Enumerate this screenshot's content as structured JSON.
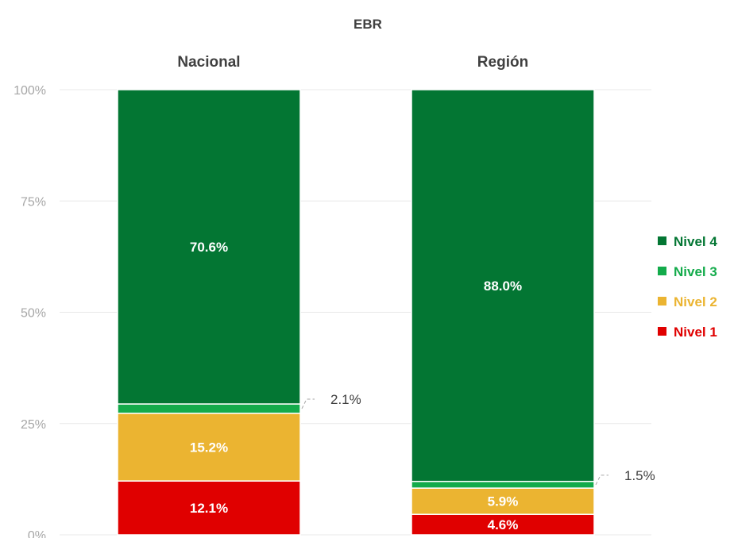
{
  "chart_data": {
    "type": "bar",
    "stacked": true,
    "title": "EBR",
    "categories": [
      "Nacional",
      "Región"
    ],
    "yticks": [
      "0%",
      "25%",
      "50%",
      "75%",
      "100%"
    ],
    "ylim": [
      0,
      100
    ],
    "grid": true,
    "legend_position": "right",
    "series": [
      {
        "name": "Nivel 1",
        "color": "#e00000",
        "values": [
          12.1,
          4.6
        ],
        "labels": [
          "12.1%",
          "4.6%"
        ],
        "label_outside": false
      },
      {
        "name": "Nivel 2",
        "color": "#ebb431",
        "values": [
          15.2,
          5.9
        ],
        "labels": [
          "15.2%",
          "5.9%"
        ],
        "label_outside": false
      },
      {
        "name": "Nivel 3",
        "color": "#13ab4b",
        "values": [
          2.1,
          1.5
        ],
        "labels": [
          "2.1%",
          "1.5%"
        ],
        "label_outside": true
      },
      {
        "name": "Nivel 4",
        "color": "#037633",
        "values": [
          70.6,
          88.0
        ],
        "labels": [
          "70.6%",
          "88.0%"
        ],
        "label_outside": false
      }
    ]
  }
}
